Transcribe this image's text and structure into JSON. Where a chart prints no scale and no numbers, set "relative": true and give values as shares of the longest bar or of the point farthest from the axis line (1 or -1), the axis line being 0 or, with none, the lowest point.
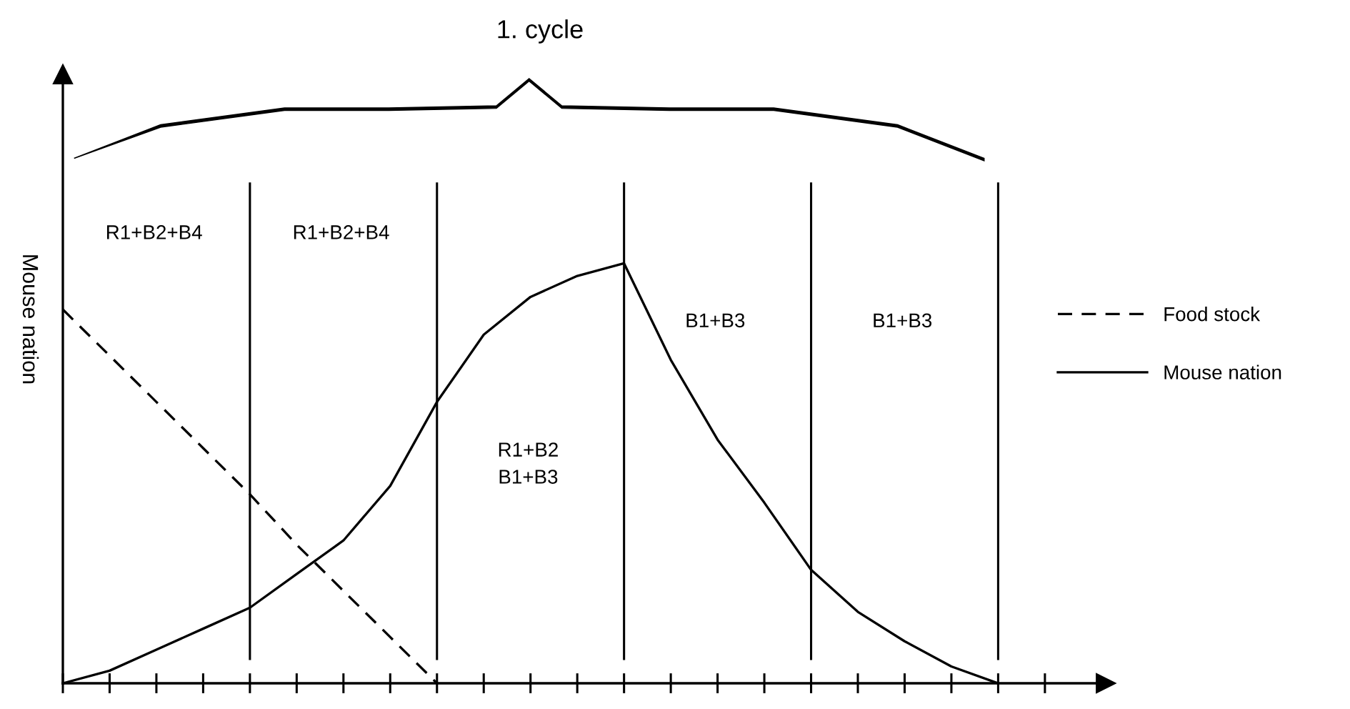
{
  "chart_data": {
    "type": "line",
    "relative": true,
    "title": "1. cycle",
    "ylabel": "Mouse nation",
    "categories": [
      null,
      null,
      null,
      null,
      null,
      null,
      null,
      null,
      null,
      null,
      null,
      null,
      null,
      null,
      null,
      null,
      null,
      null,
      null,
      null,
      null,
      null
    ],
    "series": [
      {
        "name": "Food stock",
        "color": "#000000",
        "line_style": "dashed",
        "values": [
          0.89,
          0.78,
          0.67,
          0.56,
          0.45,
          0.33,
          0.22,
          0.11,
          0,
          null,
          null,
          null,
          null,
          null,
          null,
          null,
          null,
          null,
          null,
          null,
          null,
          null
        ]
      },
      {
        "name": "Mouse nation",
        "color": "#000000",
        "line_style": "solid",
        "values": [
          0,
          0.03,
          0.08,
          0.13,
          0.18,
          0.26,
          0.34,
          0.47,
          0.67,
          0.83,
          0.92,
          0.97,
          1,
          0.77,
          0.58,
          0.43,
          0.27,
          0.17,
          0.1,
          0.04,
          0,
          null
        ]
      }
    ],
    "annotations": [
      "R1+B2+B4",
      "R1+B2+B4",
      "R1+B2\nB1+B3",
      "B1+B3",
      "B1+B3"
    ],
    "legend": "right",
    "grid": "x",
    "marker": "none"
  }
}
